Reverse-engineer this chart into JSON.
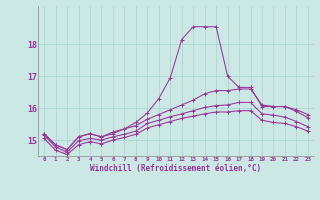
{
  "xlabel": "Windchill (Refroidissement éolien,°C)",
  "background_color": "#cce8e4",
  "grid_color": "#aad8d4",
  "line_color": "#993399",
  "hours": [
    0,
    1,
    2,
    3,
    4,
    5,
    6,
    7,
    8,
    9,
    10,
    11,
    12,
    13,
    14,
    15,
    16,
    17,
    18,
    19,
    20,
    21,
    22,
    23
  ],
  "line_spike": [
    15.2,
    14.85,
    14.7,
    15.1,
    15.2,
    15.1,
    15.2,
    15.35,
    15.55,
    15.85,
    16.3,
    16.95,
    18.15,
    18.55,
    18.55,
    18.55,
    17.0,
    16.65,
    16.65,
    16.05,
    16.05,
    16.05,
    15.9,
    15.7
  ],
  "line_upper": [
    15.2,
    14.85,
    14.7,
    15.1,
    15.2,
    15.1,
    15.25,
    15.35,
    15.45,
    15.65,
    15.8,
    15.95,
    16.1,
    16.25,
    16.45,
    16.55,
    16.55,
    16.6,
    16.6,
    16.1,
    16.05,
    16.05,
    15.95,
    15.8
  ],
  "line_mid": [
    15.15,
    14.78,
    14.62,
    14.98,
    15.05,
    15.0,
    15.1,
    15.18,
    15.28,
    15.52,
    15.62,
    15.73,
    15.82,
    15.92,
    16.02,
    16.08,
    16.1,
    16.18,
    16.18,
    15.82,
    15.78,
    15.72,
    15.58,
    15.42
  ],
  "line_lower": [
    15.05,
    14.68,
    14.55,
    14.85,
    14.95,
    14.88,
    15.0,
    15.08,
    15.18,
    15.38,
    15.48,
    15.58,
    15.68,
    15.75,
    15.82,
    15.88,
    15.88,
    15.92,
    15.92,
    15.62,
    15.55,
    15.52,
    15.42,
    15.28
  ],
  "ylim": [
    14.5,
    19.2
  ],
  "yticks": [
    15,
    16,
    17,
    18
  ],
  "xtick_labels": [
    "0",
    "1",
    "2",
    "3",
    "4",
    "5",
    "6",
    "7",
    "8",
    "9",
    "10",
    "11",
    "12",
    "13",
    "14",
    "15",
    "16",
    "17",
    "18",
    "19",
    "20",
    "21",
    "22",
    "23"
  ]
}
